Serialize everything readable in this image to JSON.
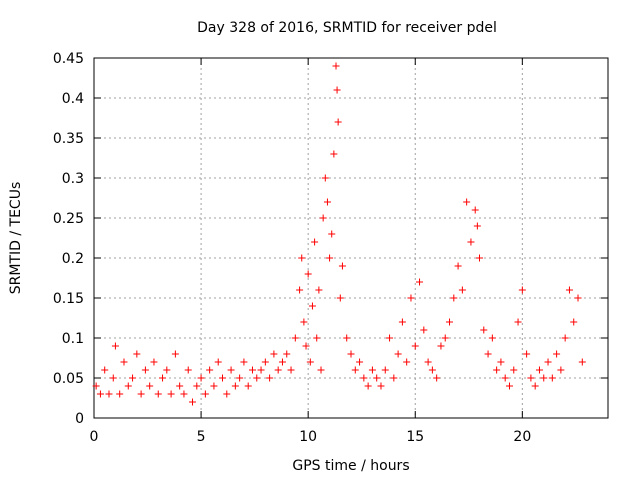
{
  "chart_data": {
    "type": "scatter",
    "title": "Day 328 of 2016, SRMTID for receiver pdel",
    "xlabel": "GPS time / hours",
    "ylabel": "SRMTID / TECUs",
    "xlim": [
      0,
      24
    ],
    "ylim": [
      0,
      0.45
    ],
    "xticks": [
      "0",
      "5",
      "10",
      "15",
      "20"
    ],
    "yticks": [
      "0",
      "0.05",
      "0.1",
      "0.15",
      "0.2",
      "0.25",
      "0.3",
      "0.35",
      "0.4",
      "0.45"
    ],
    "grid": true,
    "marker": "+",
    "color": "#ff0000",
    "series": [
      {
        "name": "SRMTID",
        "points": [
          [
            0.1,
            0.04
          ],
          [
            0.3,
            0.03
          ],
          [
            0.5,
            0.06
          ],
          [
            0.7,
            0.03
          ],
          [
            0.9,
            0.05
          ],
          [
            1.0,
            0.09
          ],
          [
            1.2,
            0.03
          ],
          [
            1.4,
            0.07
          ],
          [
            1.6,
            0.04
          ],
          [
            1.8,
            0.05
          ],
          [
            2.0,
            0.08
          ],
          [
            2.2,
            0.03
          ],
          [
            2.4,
            0.06
          ],
          [
            2.6,
            0.04
          ],
          [
            2.8,
            0.07
          ],
          [
            3.0,
            0.03
          ],
          [
            3.2,
            0.05
          ],
          [
            3.4,
            0.06
          ],
          [
            3.6,
            0.03
          ],
          [
            3.8,
            0.08
          ],
          [
            4.0,
            0.04
          ],
          [
            4.2,
            0.03
          ],
          [
            4.4,
            0.06
          ],
          [
            4.6,
            0.02
          ],
          [
            4.8,
            0.04
          ],
          [
            5.0,
            0.05
          ],
          [
            5.2,
            0.03
          ],
          [
            5.4,
            0.06
          ],
          [
            5.6,
            0.04
          ],
          [
            5.8,
            0.07
          ],
          [
            6.0,
            0.05
          ],
          [
            6.2,
            0.03
          ],
          [
            6.4,
            0.06
          ],
          [
            6.6,
            0.04
          ],
          [
            6.8,
            0.05
          ],
          [
            7.0,
            0.07
          ],
          [
            7.2,
            0.04
          ],
          [
            7.4,
            0.06
          ],
          [
            7.6,
            0.05
          ],
          [
            7.8,
            0.06
          ],
          [
            8.0,
            0.07
          ],
          [
            8.2,
            0.05
          ],
          [
            8.4,
            0.08
          ],
          [
            8.6,
            0.06
          ],
          [
            8.8,
            0.07
          ],
          [
            9.0,
            0.08
          ],
          [
            9.2,
            0.06
          ],
          [
            9.4,
            0.1
          ],
          [
            9.6,
            0.16
          ],
          [
            9.7,
            0.2
          ],
          [
            9.8,
            0.12
          ],
          [
            9.9,
            0.09
          ],
          [
            10.0,
            0.18
          ],
          [
            10.1,
            0.07
          ],
          [
            10.2,
            0.14
          ],
          [
            10.3,
            0.22
          ],
          [
            10.4,
            0.1
          ],
          [
            10.5,
            0.16
          ],
          [
            10.6,
            0.06
          ],
          [
            10.7,
            0.25
          ],
          [
            10.8,
            0.3
          ],
          [
            10.9,
            0.27
          ],
          [
            11.0,
            0.2
          ],
          [
            11.1,
            0.23
          ],
          [
            11.2,
            0.33
          ],
          [
            11.3,
            0.44
          ],
          [
            11.35,
            0.41
          ],
          [
            11.4,
            0.37
          ],
          [
            11.5,
            0.15
          ],
          [
            11.6,
            0.19
          ],
          [
            11.8,
            0.1
          ],
          [
            12.0,
            0.08
          ],
          [
            12.2,
            0.06
          ],
          [
            12.4,
            0.07
          ],
          [
            12.6,
            0.05
          ],
          [
            12.8,
            0.04
          ],
          [
            13.0,
            0.06
          ],
          [
            13.2,
            0.05
          ],
          [
            13.4,
            0.04
          ],
          [
            13.6,
            0.06
          ],
          [
            13.8,
            0.1
          ],
          [
            14.0,
            0.05
          ],
          [
            14.2,
            0.08
          ],
          [
            14.4,
            0.12
          ],
          [
            14.6,
            0.07
          ],
          [
            14.8,
            0.15
          ],
          [
            15.0,
            0.09
          ],
          [
            15.2,
            0.17
          ],
          [
            15.4,
            0.11
          ],
          [
            15.6,
            0.07
          ],
          [
            15.8,
            0.06
          ],
          [
            16.0,
            0.05
          ],
          [
            16.2,
            0.09
          ],
          [
            16.4,
            0.1
          ],
          [
            16.6,
            0.12
          ],
          [
            16.8,
            0.15
          ],
          [
            17.0,
            0.19
          ],
          [
            17.2,
            0.16
          ],
          [
            17.4,
            0.27
          ],
          [
            17.6,
            0.22
          ],
          [
            17.8,
            0.26
          ],
          [
            17.9,
            0.24
          ],
          [
            18.0,
            0.2
          ],
          [
            18.2,
            0.11
          ],
          [
            18.4,
            0.08
          ],
          [
            18.6,
            0.1
          ],
          [
            18.8,
            0.06
          ],
          [
            19.0,
            0.07
          ],
          [
            19.2,
            0.05
          ],
          [
            19.4,
            0.04
          ],
          [
            19.6,
            0.06
          ],
          [
            19.8,
            0.12
          ],
          [
            20.0,
            0.16
          ],
          [
            20.2,
            0.08
          ],
          [
            20.4,
            0.05
          ],
          [
            20.6,
            0.04
          ],
          [
            20.8,
            0.06
          ],
          [
            21.0,
            0.05
          ],
          [
            21.2,
            0.07
          ],
          [
            21.4,
            0.05
          ],
          [
            21.6,
            0.08
          ],
          [
            21.8,
            0.06
          ],
          [
            22.0,
            0.1
          ],
          [
            22.2,
            0.16
          ],
          [
            22.4,
            0.12
          ],
          [
            22.6,
            0.15
          ],
          [
            22.8,
            0.07
          ]
        ]
      }
    ]
  }
}
